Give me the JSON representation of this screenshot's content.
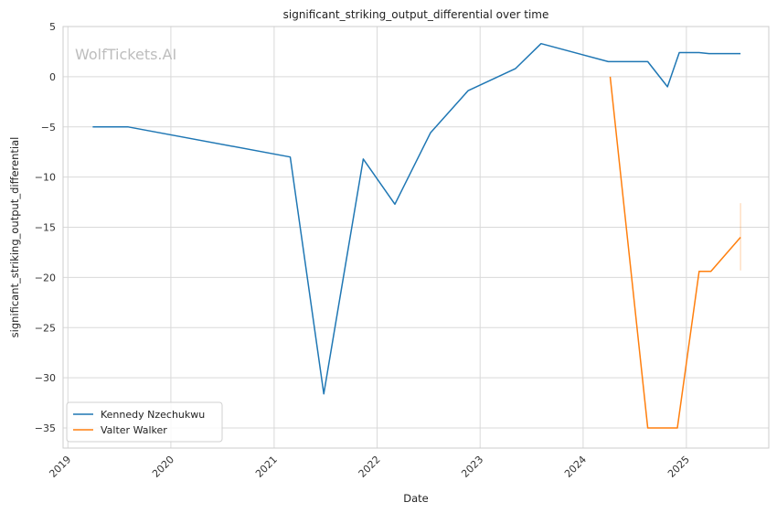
{
  "chart_data": {
    "type": "line",
    "title": "significant_striking_output_differential over time",
    "xlabel": "Date",
    "ylabel": "significant_striking_output_differential",
    "watermark": "WolfTickets.AI",
    "xlim": [
      "2018-12-15",
      "2025-10-20"
    ],
    "ylim": [
      -37,
      5
    ],
    "x_ticks": [
      "2019",
      "2020",
      "2021",
      "2022",
      "2023",
      "2024",
      "2025"
    ],
    "y_ticks": [
      5,
      0,
      -5,
      -10,
      -15,
      -20,
      -25,
      -30,
      -35
    ],
    "grid": true,
    "legend_position": "lower-left",
    "series": [
      {
        "name": "Kennedy Nzechukwu",
        "color": "#1f77b4",
        "points": [
          [
            "2019-03-30",
            -5.0
          ],
          [
            "2019-08-03",
            -5.0
          ],
          [
            "2021-02-27",
            -8.0
          ],
          [
            "2021-06-26",
            -31.6
          ],
          [
            "2021-11-13",
            -8.2
          ],
          [
            "2022-03-05",
            -12.7
          ],
          [
            "2022-07-09",
            -5.6
          ],
          [
            "2022-11-19",
            -1.4
          ],
          [
            "2023-05-06",
            0.8
          ],
          [
            "2023-08-05",
            3.3
          ],
          [
            "2024-03-30",
            1.5
          ],
          [
            "2024-08-17",
            1.5
          ],
          [
            "2024-10-26",
            -1.0
          ],
          [
            "2024-12-07",
            2.4
          ],
          [
            "2025-02-15",
            2.4
          ],
          [
            "2025-03-22",
            2.3
          ],
          [
            "2025-07-12",
            2.3
          ]
        ]
      },
      {
        "name": "Valter Walker",
        "color": "#ff7f0e",
        "points": [
          [
            "2024-04-06",
            0.0
          ],
          [
            "2024-08-17",
            -35.0
          ],
          [
            "2024-11-30",
            -35.0
          ],
          [
            "2025-02-15",
            -19.4
          ],
          [
            "2025-03-29",
            -19.4
          ],
          [
            "2025-07-12",
            -16.0
          ]
        ],
        "band": {
          "date": "2025-07-12",
          "low": -19.3,
          "high": -12.6
        }
      }
    ]
  }
}
